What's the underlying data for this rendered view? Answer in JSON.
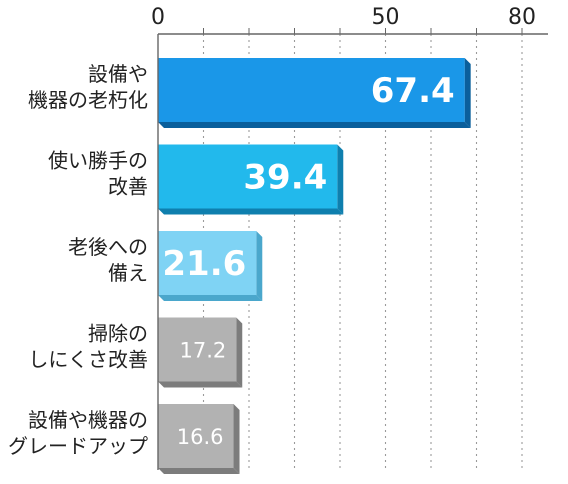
{
  "chart_data": {
    "type": "bar",
    "orientation": "horizontal",
    "categories": [
      [
        "設備や",
        "機器の老朽化"
      ],
      [
        "使い勝手の",
        "改善"
      ],
      [
        "老後への",
        "備え"
      ],
      [
        "掃除の",
        "しにくさ改善"
      ],
      [
        "設備や機器の",
        "グレードアップ"
      ]
    ],
    "values": [
      67.4,
      39.4,
      21.6,
      17.2,
      16.6
    ],
    "tick_labels": [
      "0",
      "50",
      "80"
    ],
    "xlim": [
      0,
      86
    ],
    "grid": true,
    "title": "",
    "xlabel": "",
    "ylabel": "",
    "colors": {
      "bar_fills": [
        "#1a97e8",
        "#22b9ec",
        "#7fd3f4",
        "#b2b2b2",
        "#b2b2b2"
      ],
      "bar_sides": [
        "#0a5f9c",
        "#0f7fae",
        "#4aa7cc",
        "#7c7c7c",
        "#7c7c7c"
      ],
      "grid": "#9a9a9a",
      "axis": "#666666",
      "text": "#222222"
    }
  }
}
